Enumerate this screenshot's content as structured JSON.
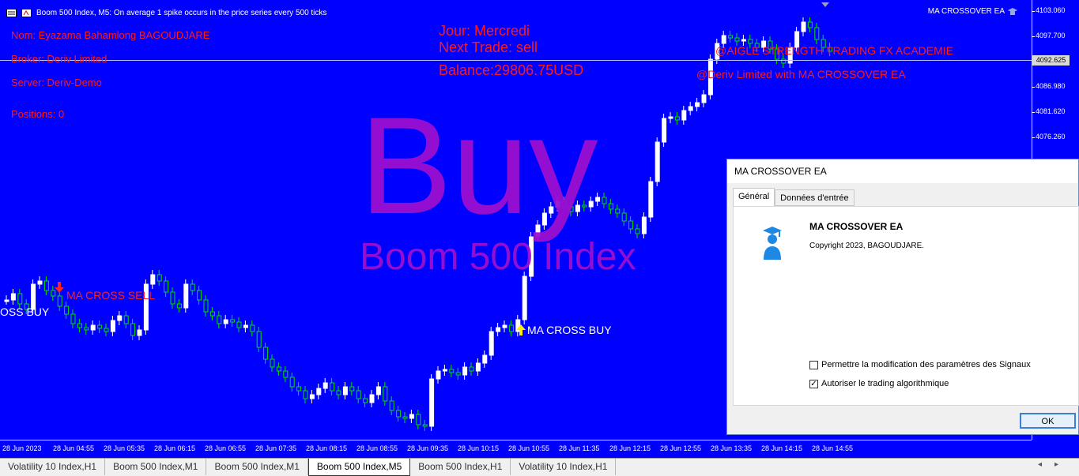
{
  "window": {
    "title": "Boom 500 Index, M5:  On average 1 spike occurs in the price series every 500 ticks",
    "ea_label": "MA CROSSOVER EA"
  },
  "account_info": {
    "name": "Nom: Eyazama Bahamlong BAGOUDJARE",
    "broker": "Broker: Deriv Limited",
    "server": "Server: Deriv-Demo",
    "positions": "Positions: 0"
  },
  "status": {
    "day": "Jour: Mercredi",
    "next_trade": "Next Trade: sell",
    "balance": "Balance:29806.75USD"
  },
  "watermark": {
    "signal": "Buy",
    "symbol": "Boom 500 Index"
  },
  "overlay_text": {
    "academy": "@AIGLE STRENGTH TRADING FX ACADEMIE",
    "credit": "@Deriv Limited with MA CROSSOVER EA"
  },
  "signals": [
    {
      "label": "MA CROSS SELL",
      "color": "#ff2020"
    },
    {
      "label": "OSS BUY",
      "color": "#ffffff"
    },
    {
      "label": "MA CROSS BUY",
      "color": "#ffffff"
    }
  ],
  "price_axis": {
    "ticks": [
      "4103.060",
      "4097.700",
      "4092.340",
      "4086.980",
      "4081.620",
      "4076.260"
    ],
    "current_price": "4092.625"
  },
  "time_axis": {
    "ticks": [
      "28 Jun 2023",
      "28 Jun 04:55",
      "28 Jun 05:35",
      "28 Jun 06:15",
      "28 Jun 06:55",
      "28 Jun 07:35",
      "28 Jun 08:15",
      "28 Jun 08:55",
      "28 Jun 09:35",
      "28 Jun 10:15",
      "28 Jun 10:55",
      "28 Jun 11:35",
      "28 Jun 12:15",
      "28 Jun 12:55",
      "28 Jun 13:35",
      "28 Jun 14:15",
      "28 Jun 14:55"
    ]
  },
  "dialog": {
    "title": "MA CROSSOVER EA",
    "tabs": [
      "Général",
      "Données d'entrée"
    ],
    "ea_name": "MA CROSSOVER EA",
    "copyright": "Copyright 2023, BAGOUDJARE.",
    "option_signals": "Permettre la modification des paramètres des Signaux",
    "option_signals_checked": false,
    "option_algo": "Autoriser le trading algorithmique",
    "option_algo_checked": true,
    "ok_label": "OK"
  },
  "bottom_tabs": [
    "Volatility 10 Index,H1",
    "Boom 500 Index,M1",
    "Boom 500 Index,M1",
    "Boom 500 Index,M5",
    "Boom 500 Index,H1",
    "Volatility 10 Index,H1"
  ],
  "active_bottom_tab": 3,
  "colors": {
    "chart_bg": "#0000ff",
    "bull": "#ffffff",
    "bear": "#00e000",
    "info_text": "#ff1a1a",
    "watermark": "#9b0fcf"
  }
}
